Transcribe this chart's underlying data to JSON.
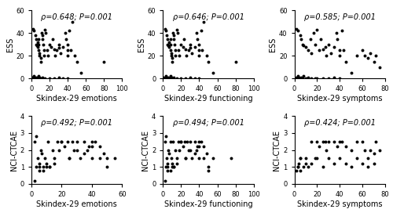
{
  "subplots": [
    {
      "xlabel": "Skindex-29 emotions",
      "ylabel": "ESS",
      "annotation": "ρ=0.648; P=0.001",
      "xlim": [
        0,
        100
      ],
      "ylim": [
        0,
        60
      ],
      "xticks": [
        0,
        20,
        40,
        60,
        80,
        100
      ],
      "yticks": [
        0,
        20,
        40,
        60
      ],
      "x": [
        2,
        3,
        4,
        5,
        5,
        6,
        7,
        7,
        8,
        8,
        8,
        9,
        9,
        10,
        10,
        11,
        12,
        12,
        13,
        14,
        14,
        15,
        16,
        17,
        18,
        20,
        22,
        23,
        25,
        26,
        28,
        30,
        30,
        32,
        35,
        37,
        38,
        40,
        40,
        40,
        42,
        43,
        45,
        48,
        50,
        55,
        80,
        3,
        4,
        5,
        6,
        7,
        8,
        9,
        10,
        12,
        15,
        20,
        25,
        30,
        35,
        40,
        1,
        2,
        3,
        4,
        5
      ],
      "y": [
        44,
        42,
        38,
        35,
        30,
        29,
        28,
        32,
        25,
        30,
        35,
        22,
        20,
        18,
        15,
        40,
        38,
        35,
        30,
        25,
        20,
        43,
        40,
        25,
        20,
        30,
        28,
        35,
        26,
        20,
        25,
        30,
        27,
        22,
        28,
        40,
        35,
        25,
        30,
        20,
        42,
        25,
        50,
        20,
        15,
        5,
        15,
        2,
        1,
        0,
        1,
        0,
        2,
        1,
        0,
        1,
        0,
        0,
        0,
        1,
        0,
        0,
        1,
        0,
        0,
        0,
        0
      ]
    },
    {
      "xlabel": "Skindex-29 functioning",
      "ylabel": "ESS",
      "annotation": "ρ=0.646; P=0.001",
      "xlim": [
        0,
        100
      ],
      "ylim": [
        0,
        60
      ],
      "xticks": [
        0,
        20,
        40,
        60,
        80,
        100
      ],
      "yticks": [
        0,
        20,
        40,
        60
      ],
      "x": [
        2,
        3,
        4,
        5,
        5,
        6,
        7,
        7,
        8,
        8,
        8,
        9,
        9,
        10,
        10,
        11,
        12,
        12,
        13,
        14,
        14,
        15,
        16,
        17,
        18,
        20,
        22,
        23,
        25,
        26,
        28,
        30,
        30,
        32,
        35,
        37,
        38,
        40,
        40,
        40,
        42,
        43,
        45,
        48,
        50,
        55,
        80,
        3,
        4,
        5,
        6,
        7,
        8,
        9,
        10,
        12,
        15,
        20,
        25,
        30,
        35,
        40,
        1,
        2,
        3,
        4,
        5
      ],
      "y": [
        44,
        42,
        38,
        35,
        30,
        29,
        28,
        32,
        25,
        30,
        35,
        22,
        20,
        18,
        15,
        40,
        38,
        35,
        30,
        25,
        20,
        43,
        40,
        25,
        20,
        30,
        28,
        35,
        26,
        20,
        25,
        30,
        27,
        22,
        28,
        40,
        35,
        25,
        30,
        20,
        42,
        25,
        50,
        20,
        15,
        5,
        15,
        2,
        1,
        0,
        1,
        0,
        2,
        1,
        0,
        1,
        0,
        0,
        0,
        1,
        0,
        0,
        1,
        0,
        0,
        0,
        0
      ]
    },
    {
      "xlabel": "Skindex-29 symptoms",
      "ylabel": "ESS",
      "annotation": "ρ=0.585; P=0.001",
      "xlim": [
        0,
        80
      ],
      "ylim": [
        0,
        60
      ],
      "xticks": [
        0,
        20,
        40,
        60,
        80
      ],
      "yticks": [
        0,
        20,
        40,
        60
      ],
      "x": [
        2,
        3,
        5,
        6,
        7,
        8,
        10,
        12,
        14,
        15,
        17,
        18,
        20,
        22,
        23,
        25,
        27,
        28,
        30,
        32,
        35,
        37,
        38,
        40,
        40,
        42,
        43,
        45,
        50,
        55,
        60,
        62,
        65,
        67,
        70,
        72,
        75,
        3,
        4,
        5,
        6,
        7,
        8,
        10,
        12,
        15,
        18,
        20,
        25,
        30,
        35,
        40,
        2,
        3,
        4,
        5,
        6
      ],
      "y": [
        44,
        42,
        38,
        35,
        30,
        29,
        28,
        25,
        35,
        22,
        40,
        30,
        43,
        25,
        35,
        26,
        28,
        20,
        30,
        22,
        28,
        40,
        35,
        25,
        20,
        42,
        25,
        15,
        5,
        20,
        25,
        20,
        18,
        22,
        15,
        20,
        10,
        2,
        1,
        0,
        1,
        0,
        2,
        0,
        1,
        0,
        0,
        0,
        0,
        0,
        1,
        0,
        1,
        0,
        0,
        0,
        0
      ]
    },
    {
      "xlabel": "Skindex-29 emotions",
      "ylabel": "NCI-CTCAE",
      "annotation": "ρ=0.492; P=0.001",
      "xlim": [
        0,
        60
      ],
      "ylim": [
        0,
        4
      ],
      "xticks": [
        0,
        20,
        40,
        60
      ],
      "yticks": [
        0,
        1,
        2,
        3,
        4
      ],
      "x": [
        2,
        3,
        4,
        5,
        5,
        6,
        7,
        8,
        9,
        10,
        11,
        12,
        14,
        15,
        17,
        18,
        20,
        22,
        24,
        25,
        27,
        28,
        30,
        32,
        35,
        37,
        38,
        40,
        40,
        42,
        45,
        48,
        50,
        10,
        2,
        5,
        3,
        20,
        25,
        30,
        35,
        40,
        45,
        50,
        55,
        12,
        8,
        15
      ],
      "y": [
        2.5,
        2.8,
        1.5,
        1.0,
        1.2,
        2.0,
        1.8,
        1.0,
        1.5,
        1.2,
        2.5,
        1.0,
        2.0,
        1.5,
        2.5,
        2.0,
        2.5,
        2.2,
        2.5,
        1.5,
        2.5,
        2.0,
        2.5,
        1.5,
        2.5,
        2.0,
        2.2,
        2.5,
        1.5,
        2.5,
        2.2,
        1.8,
        1.5,
        1.0,
        0.2,
        0.8,
        1.0,
        2.5,
        1.5,
        2.0,
        1.8,
        2.2,
        1.5,
        1.0,
        1.5,
        1.0,
        0.8,
        1.2
      ]
    },
    {
      "xlabel": "Skindex-29 functioning",
      "ylabel": "NCI-CTCAE",
      "annotation": "ρ=0.494; P=0.001",
      "xlim": [
        0,
        100
      ],
      "ylim": [
        0,
        4
      ],
      "xticks": [
        0,
        20,
        40,
        60,
        80,
        100
      ],
      "yticks": [
        0,
        1,
        2,
        3,
        4
      ],
      "x": [
        2,
        3,
        4,
        5,
        5,
        6,
        7,
        8,
        9,
        10,
        11,
        12,
        14,
        15,
        17,
        18,
        20,
        22,
        24,
        25,
        27,
        28,
        30,
        32,
        35,
        37,
        38,
        40,
        40,
        42,
        45,
        48,
        50,
        75,
        10,
        2,
        5,
        3,
        20,
        25,
        30,
        35,
        40,
        45,
        50,
        55,
        12,
        8,
        15
      ],
      "y": [
        2.5,
        2.8,
        1.5,
        1.0,
        1.2,
        2.0,
        1.8,
        2.5,
        1.5,
        1.2,
        2.5,
        1.0,
        2.0,
        1.5,
        2.5,
        2.0,
        2.5,
        2.2,
        2.5,
        1.5,
        2.5,
        2.0,
        2.5,
        1.5,
        2.5,
        2.0,
        2.2,
        2.5,
        1.5,
        2.5,
        2.2,
        1.8,
        0.8,
        1.5,
        1.0,
        0.2,
        0.8,
        1.0,
        2.5,
        1.5,
        2.0,
        1.8,
        2.2,
        1.5,
        1.0,
        1.5,
        1.0,
        0.8,
        1.2
      ]
    },
    {
      "xlabel": "Skindex-29 symptoms",
      "ylabel": "NCI-CTCAE",
      "annotation": "ρ=0.424; P=0.001",
      "xlim": [
        0,
        80
      ],
      "ylim": [
        0,
        4
      ],
      "xticks": [
        0,
        20,
        40,
        60,
        80
      ],
      "yticks": [
        0,
        1,
        2,
        3,
        4
      ],
      "x": [
        5,
        10,
        15,
        20,
        22,
        25,
        27,
        28,
        30,
        35,
        38,
        40,
        42,
        45,
        50,
        55,
        60,
        62,
        65,
        67,
        70,
        72,
        75,
        3,
        4,
        5,
        8,
        10,
        12,
        15,
        18,
        20,
        25,
        30,
        35,
        40,
        45,
        50,
        55,
        60,
        65,
        70,
        2,
        3,
        5
      ],
      "y": [
        1.5,
        1.2,
        2.5,
        2.5,
        2.2,
        2.5,
        2.5,
        2.0,
        2.5,
        2.5,
        2.2,
        2.5,
        2.5,
        2.2,
        2.0,
        2.5,
        2.5,
        2.0,
        1.5,
        2.0,
        1.8,
        2.5,
        2.0,
        1.0,
        1.2,
        1.5,
        1.0,
        1.5,
        1.0,
        1.2,
        1.5,
        1.5,
        1.0,
        1.5,
        1.2,
        1.5,
        1.2,
        1.0,
        1.5,
        1.2,
        1.0,
        1.2,
        0.8,
        1.0,
        0.8
      ]
    }
  ],
  "dot_color": "#000000",
  "dot_size": 8,
  "annotation_fontsize": 7,
  "axis_label_fontsize": 7,
  "tick_fontsize": 6,
  "figure_bgcolor": "#ffffff"
}
